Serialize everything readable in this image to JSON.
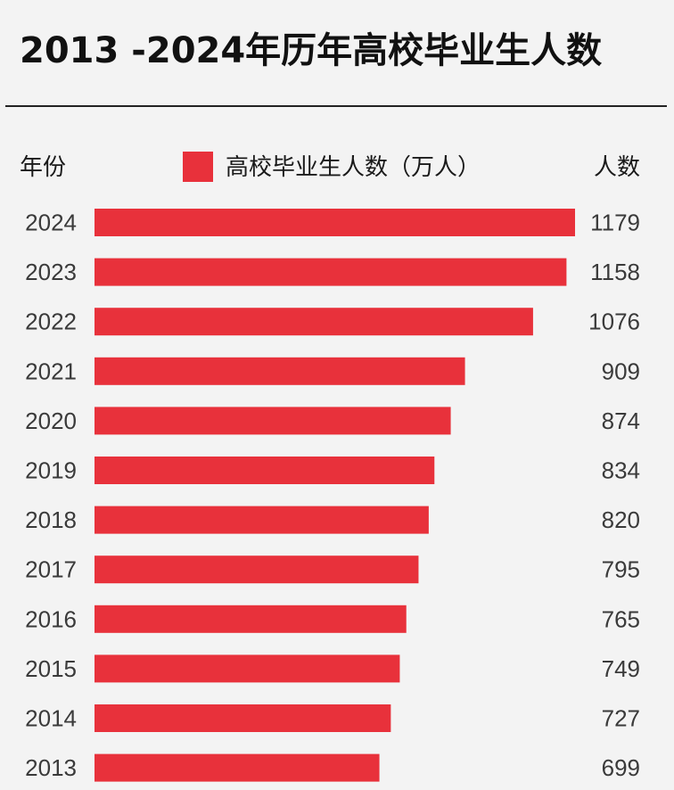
{
  "chart_data": {
    "type": "bar",
    "orientation": "horizontal",
    "title": "2013 -2024年历年高校毕业生人数",
    "category_header": "年份",
    "value_header": "人数",
    "legend": {
      "label": "高校毕业生人数（万人）",
      "color": "#e8313b",
      "placement": "top-center"
    },
    "categories": [
      "2024",
      "2023",
      "2022",
      "2021",
      "2020",
      "2019",
      "2018",
      "2017",
      "2016",
      "2015",
      "2014",
      "2013"
    ],
    "values": [
      1179,
      1158,
      1076,
      909,
      874,
      834,
      820,
      795,
      765,
      749,
      727,
      699
    ],
    "xlim": [
      0,
      1179
    ],
    "grid": false,
    "bar_color": "#e8313b"
  }
}
